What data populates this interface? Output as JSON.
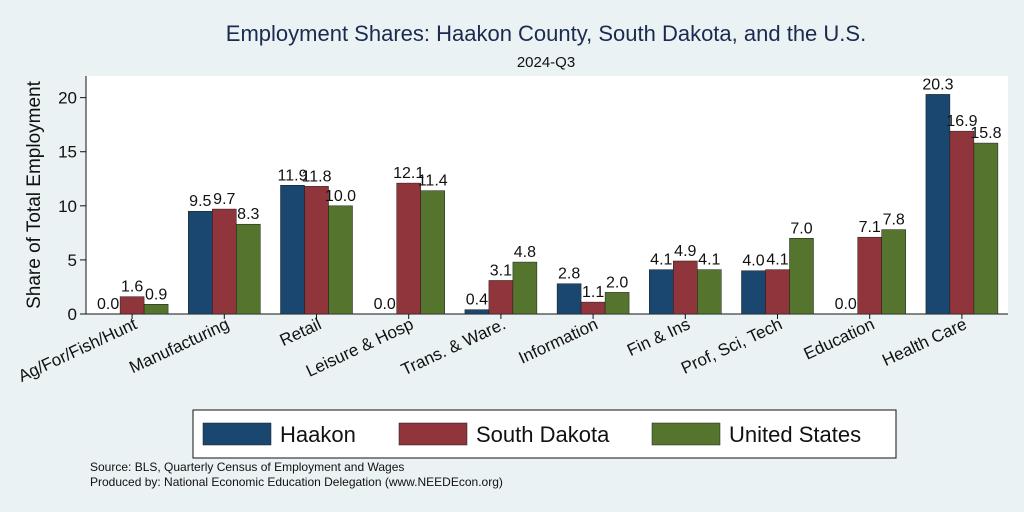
{
  "chart_data": {
    "type": "bar",
    "title": "Employment Shares: Haakon County, South Dakota, and the U.S.",
    "subtitle": "2024-Q3",
    "xlabel": "",
    "ylabel": "Share of Total Employment",
    "ylim": [
      0,
      22
    ],
    "yticks": [
      0,
      5,
      10,
      15,
      20
    ],
    "grid": false,
    "legend_position": "bottom",
    "categories": [
      "Ag/For/Fish/Hunt",
      "Manufacturing",
      "Retail",
      "Leisure & Hosp",
      "Trans. & Ware.",
      "Information",
      "Fin & Ins",
      "Prof, Sci, Tech",
      "Education",
      "Health Care"
    ],
    "series": [
      {
        "name": "Haakon",
        "color": "#1a476f",
        "values": [
          0.0,
          9.5,
          11.9,
          0.0,
          0.4,
          2.8,
          4.1,
          4.0,
          0.0,
          20.3
        ]
      },
      {
        "name": "South Dakota",
        "color": "#90353b",
        "values": [
          1.6,
          9.7,
          11.8,
          12.1,
          3.1,
          1.1,
          4.9,
          4.1,
          7.1,
          16.9
        ]
      },
      {
        "name": "United States",
        "color": "#55752f",
        "values": [
          0.9,
          8.3,
          10.0,
          11.4,
          4.8,
          2.0,
          4.1,
          7.0,
          7.8,
          15.8
        ]
      }
    ]
  },
  "notes": {
    "source": "Source: BLS, Quarterly Census of Employment and Wages",
    "produced": "Produced by: National Economic Education Delegation (www.NEEDEcon.org)"
  }
}
